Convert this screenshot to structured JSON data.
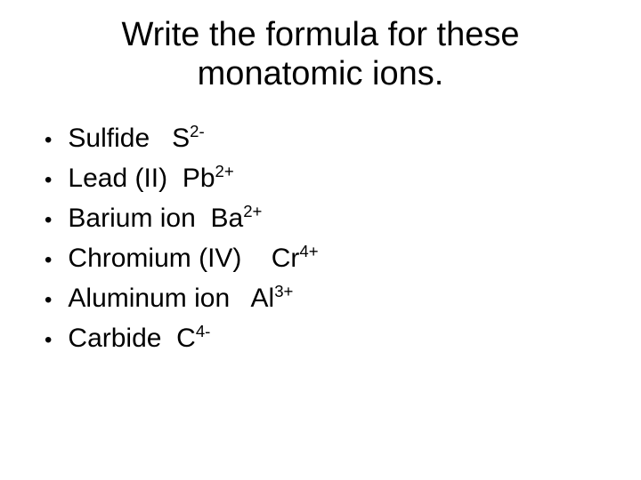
{
  "title_line1": "Write the formula for these",
  "title_line2": "monatomic ions.",
  "items": [
    {
      "name": "Sulfide",
      "gap": "   ",
      "symbol": "S",
      "charge": "2-"
    },
    {
      "name": "Lead (II)",
      "gap": "  ",
      "symbol": "Pb",
      "charge": "2+"
    },
    {
      "name": "Barium ion",
      "gap": "  ",
      "symbol": "Ba",
      "charge": "2+"
    },
    {
      "name": "Chromium (IV)",
      "gap": "    ",
      "symbol": "Cr",
      "charge": "4+"
    },
    {
      "name": "Aluminum ion",
      "gap": "   ",
      "symbol": "Al",
      "charge": "3+"
    },
    {
      "name": "Carbide",
      "gap": "  ",
      "symbol": "C",
      "charge": "4-"
    }
  ],
  "colors": {
    "background": "#ffffff",
    "text": "#000000"
  },
  "typography": {
    "title_fontsize": 38,
    "body_fontsize": 30,
    "font_family": "Arial"
  }
}
